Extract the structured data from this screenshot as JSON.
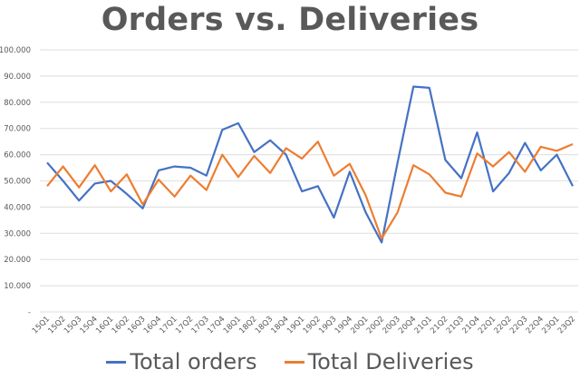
{
  "chart_data": {
    "type": "line",
    "title": "Orders vs. Deliveries",
    "xlabel": "",
    "ylabel": "",
    "ylim": [
      0,
      100000
    ],
    "y_ticks": [
      "-",
      "10.000",
      "20.000",
      "30.000",
      "40.000",
      "50.000",
      "60.000",
      "70.000",
      "80.000",
      "90.000",
      "100.000"
    ],
    "grid": true,
    "legend_position": "bottom",
    "categories": [
      "15Q1",
      "15Q2",
      "15Q3",
      "15Q4",
      "16Q1",
      "16Q2",
      "16Q3",
      "16Q4",
      "17Q1",
      "17Q2",
      "17Q3",
      "17Q4",
      "18Q1",
      "18Q2",
      "18Q3",
      "18Q4",
      "19Q1",
      "19Q2",
      "19Q3",
      "19Q4",
      "20Q1",
      "20Q2",
      "20Q3",
      "20Q4",
      "21Q1",
      "21Q2",
      "21Q3",
      "21Q4",
      "22Q1",
      "22Q2",
      "22Q3",
      "22Q4",
      "23Q1",
      "23Q2"
    ],
    "series": [
      {
        "name": "Total orders",
        "color": "#4472C4",
        "values": [
          57000,
          50000,
          42500,
          49000,
          50000,
          45000,
          39500,
          54000,
          55500,
          55000,
          52000,
          69500,
          72000,
          61000,
          65500,
          60000,
          46000,
          48000,
          36000,
          53500,
          38000,
          26500,
          57000,
          86000,
          85500,
          58000,
          51000,
          68500,
          46000,
          53000,
          64500,
          54000,
          60000,
          48000
        ]
      },
      {
        "name": "Total Deliveries",
        "color": "#ED7D31",
        "values": [
          48000,
          55500,
          47500,
          56000,
          46000,
          52500,
          41000,
          50500,
          44000,
          52000,
          46500,
          60000,
          51500,
          59500,
          53000,
          62500,
          58500,
          65000,
          52000,
          56500,
          44500,
          28000,
          38000,
          56000,
          52500,
          45500,
          44000,
          60500,
          55500,
          61000,
          53500,
          63000,
          61500,
          64000
        ]
      }
    ]
  },
  "legend": {
    "items": [
      {
        "label": "Total orders",
        "color": "#4472C4"
      },
      {
        "label": "Total Deliveries",
        "color": "#ED7D31"
      }
    ]
  }
}
